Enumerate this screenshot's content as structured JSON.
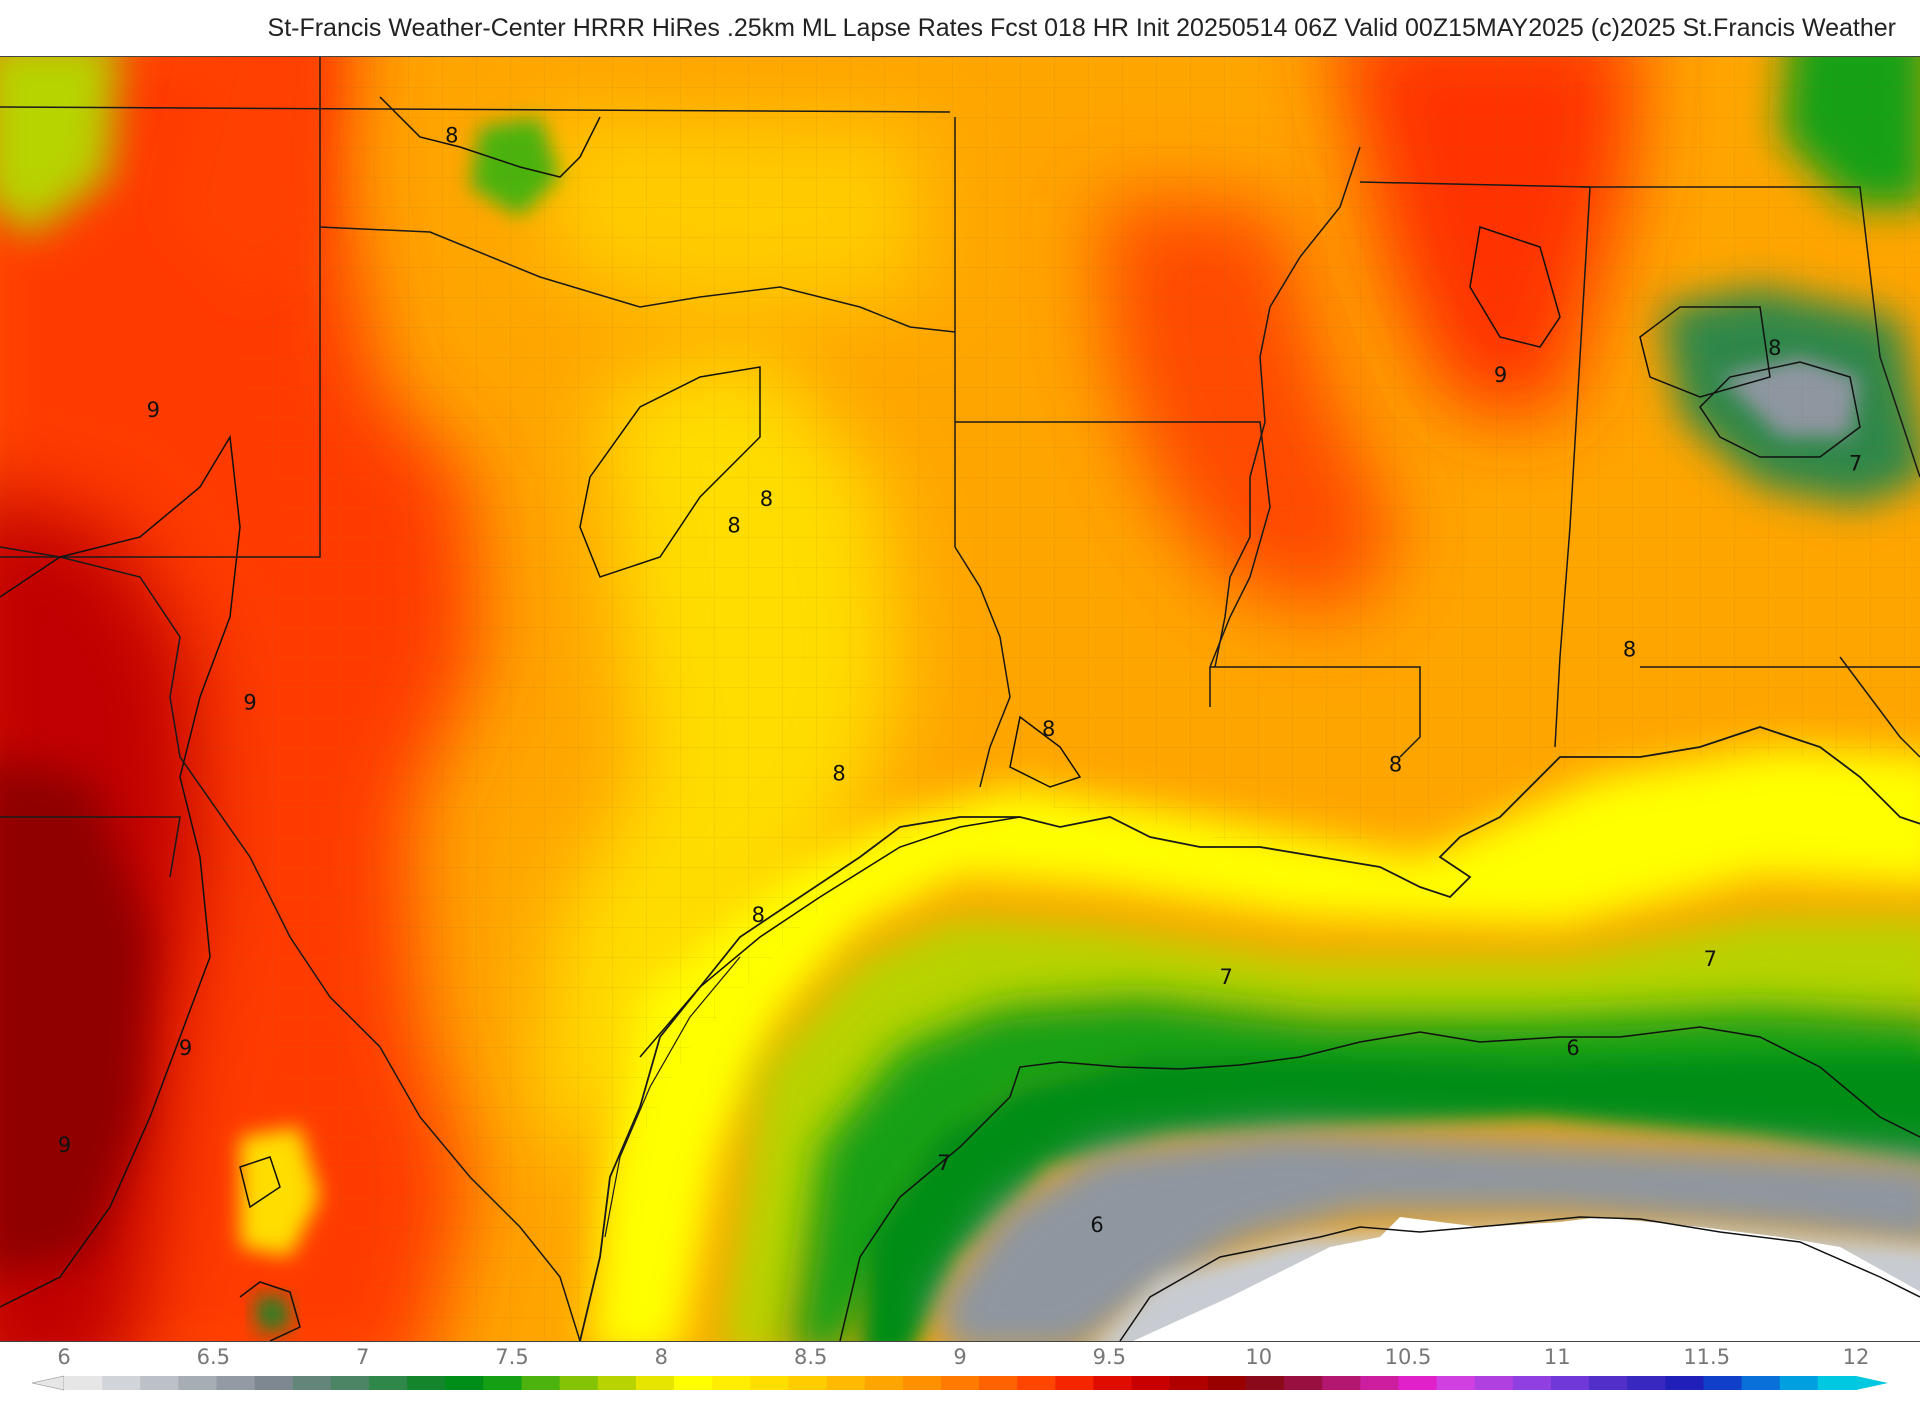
{
  "header": {
    "title": "St-Francis Weather-Center HRRR HiRes .25km ML Lapse Rates  Fcst 018 HR Init 20250514 06Z  Valid 00Z15MAY2025    (c)2025 St.Francis Weather"
  },
  "map": {
    "region": "Texas, Louisiana, Mississippi, Oklahoma and the northern Gulf of Mexico",
    "contour_labels": [
      {
        "text": "8",
        "value": 8,
        "lon": -101.4,
        "lat": 36.6
      },
      {
        "text": "8",
        "value": 8,
        "lon": -97.5,
        "lat": 32.5
      },
      {
        "text": "8",
        "value": 8,
        "lon": -97.9,
        "lat": 32.2
      },
      {
        "text": "8",
        "value": 8,
        "lon": -94.0,
        "lat": 29.9
      },
      {
        "text": "8",
        "value": 8,
        "lon": -96.6,
        "lat": 29.4
      },
      {
        "text": "8",
        "value": 8,
        "lon": -97.6,
        "lat": 27.8
      },
      {
        "text": "8",
        "value": 8,
        "lon": -89.7,
        "lat": 29.5
      },
      {
        "text": "8",
        "value": 8,
        "lon": -86.8,
        "lat": 30.8
      },
      {
        "text": "8",
        "value": 8,
        "lon": -85.0,
        "lat": 34.2
      },
      {
        "text": "9",
        "value": 9,
        "lon": -105.1,
        "lat": 33.5
      },
      {
        "text": "9",
        "value": 9,
        "lon": -103.9,
        "lat": 30.2
      },
      {
        "text": "9",
        "value": 9,
        "lon": -104.7,
        "lat": 26.3
      },
      {
        "text": "9",
        "value": 9,
        "lon": -106.2,
        "lat": 25.2
      },
      {
        "text": "9",
        "value": 9,
        "lon": -88.4,
        "lat": 33.9
      },
      {
        "text": "7",
        "value": 7,
        "lon": -84.0,
        "lat": 32.9
      },
      {
        "text": "7",
        "value": 7,
        "lon": -91.8,
        "lat": 27.1
      },
      {
        "text": "7",
        "value": 7,
        "lon": -85.8,
        "lat": 27.3
      },
      {
        "text": "7",
        "value": 7,
        "lon": -95.3,
        "lat": 25.0
      },
      {
        "text": "6",
        "value": 6,
        "lon": -87.5,
        "lat": 26.3
      },
      {
        "text": "6",
        "value": 6,
        "lon": -93.4,
        "lat": 24.3
      }
    ]
  },
  "colorbar": {
    "ticks": [
      "6",
      "6.5",
      "7",
      "7.5",
      "8",
      "8.5",
      "9",
      "9.5",
      "10",
      "10.5",
      "11",
      "11.5",
      "12"
    ],
    "min": 6,
    "max": 12,
    "colors": [
      "#e6e6e6",
      "#d1d4d8",
      "#bcc1c7",
      "#a7adb5",
      "#939aa4",
      "#7d8891",
      "#64857a",
      "#4b8566",
      "#2f8749",
      "#13852b",
      "#008d18",
      "#14a015",
      "#4cb20e",
      "#85c307",
      "#b7d302",
      "#e6e500",
      "#ffff00",
      "#ffee00",
      "#ffde00",
      "#ffcc00",
      "#ffb900",
      "#ffa500",
      "#ff9100",
      "#ff7b00",
      "#ff6200",
      "#ff4500",
      "#f52500",
      "#e00c00",
      "#c80000",
      "#b00000",
      "#980000",
      "#8a0a1a",
      "#991040",
      "#b31770",
      "#cc1fa0",
      "#e020c8",
      "#d040e0",
      "#b040e0",
      "#9040e0",
      "#7038d8",
      "#5030c8",
      "#3828c0",
      "#2020b8",
      "#1040c8",
      "#0870d8",
      "#00a0e0",
      "#00c8e0"
    ]
  }
}
